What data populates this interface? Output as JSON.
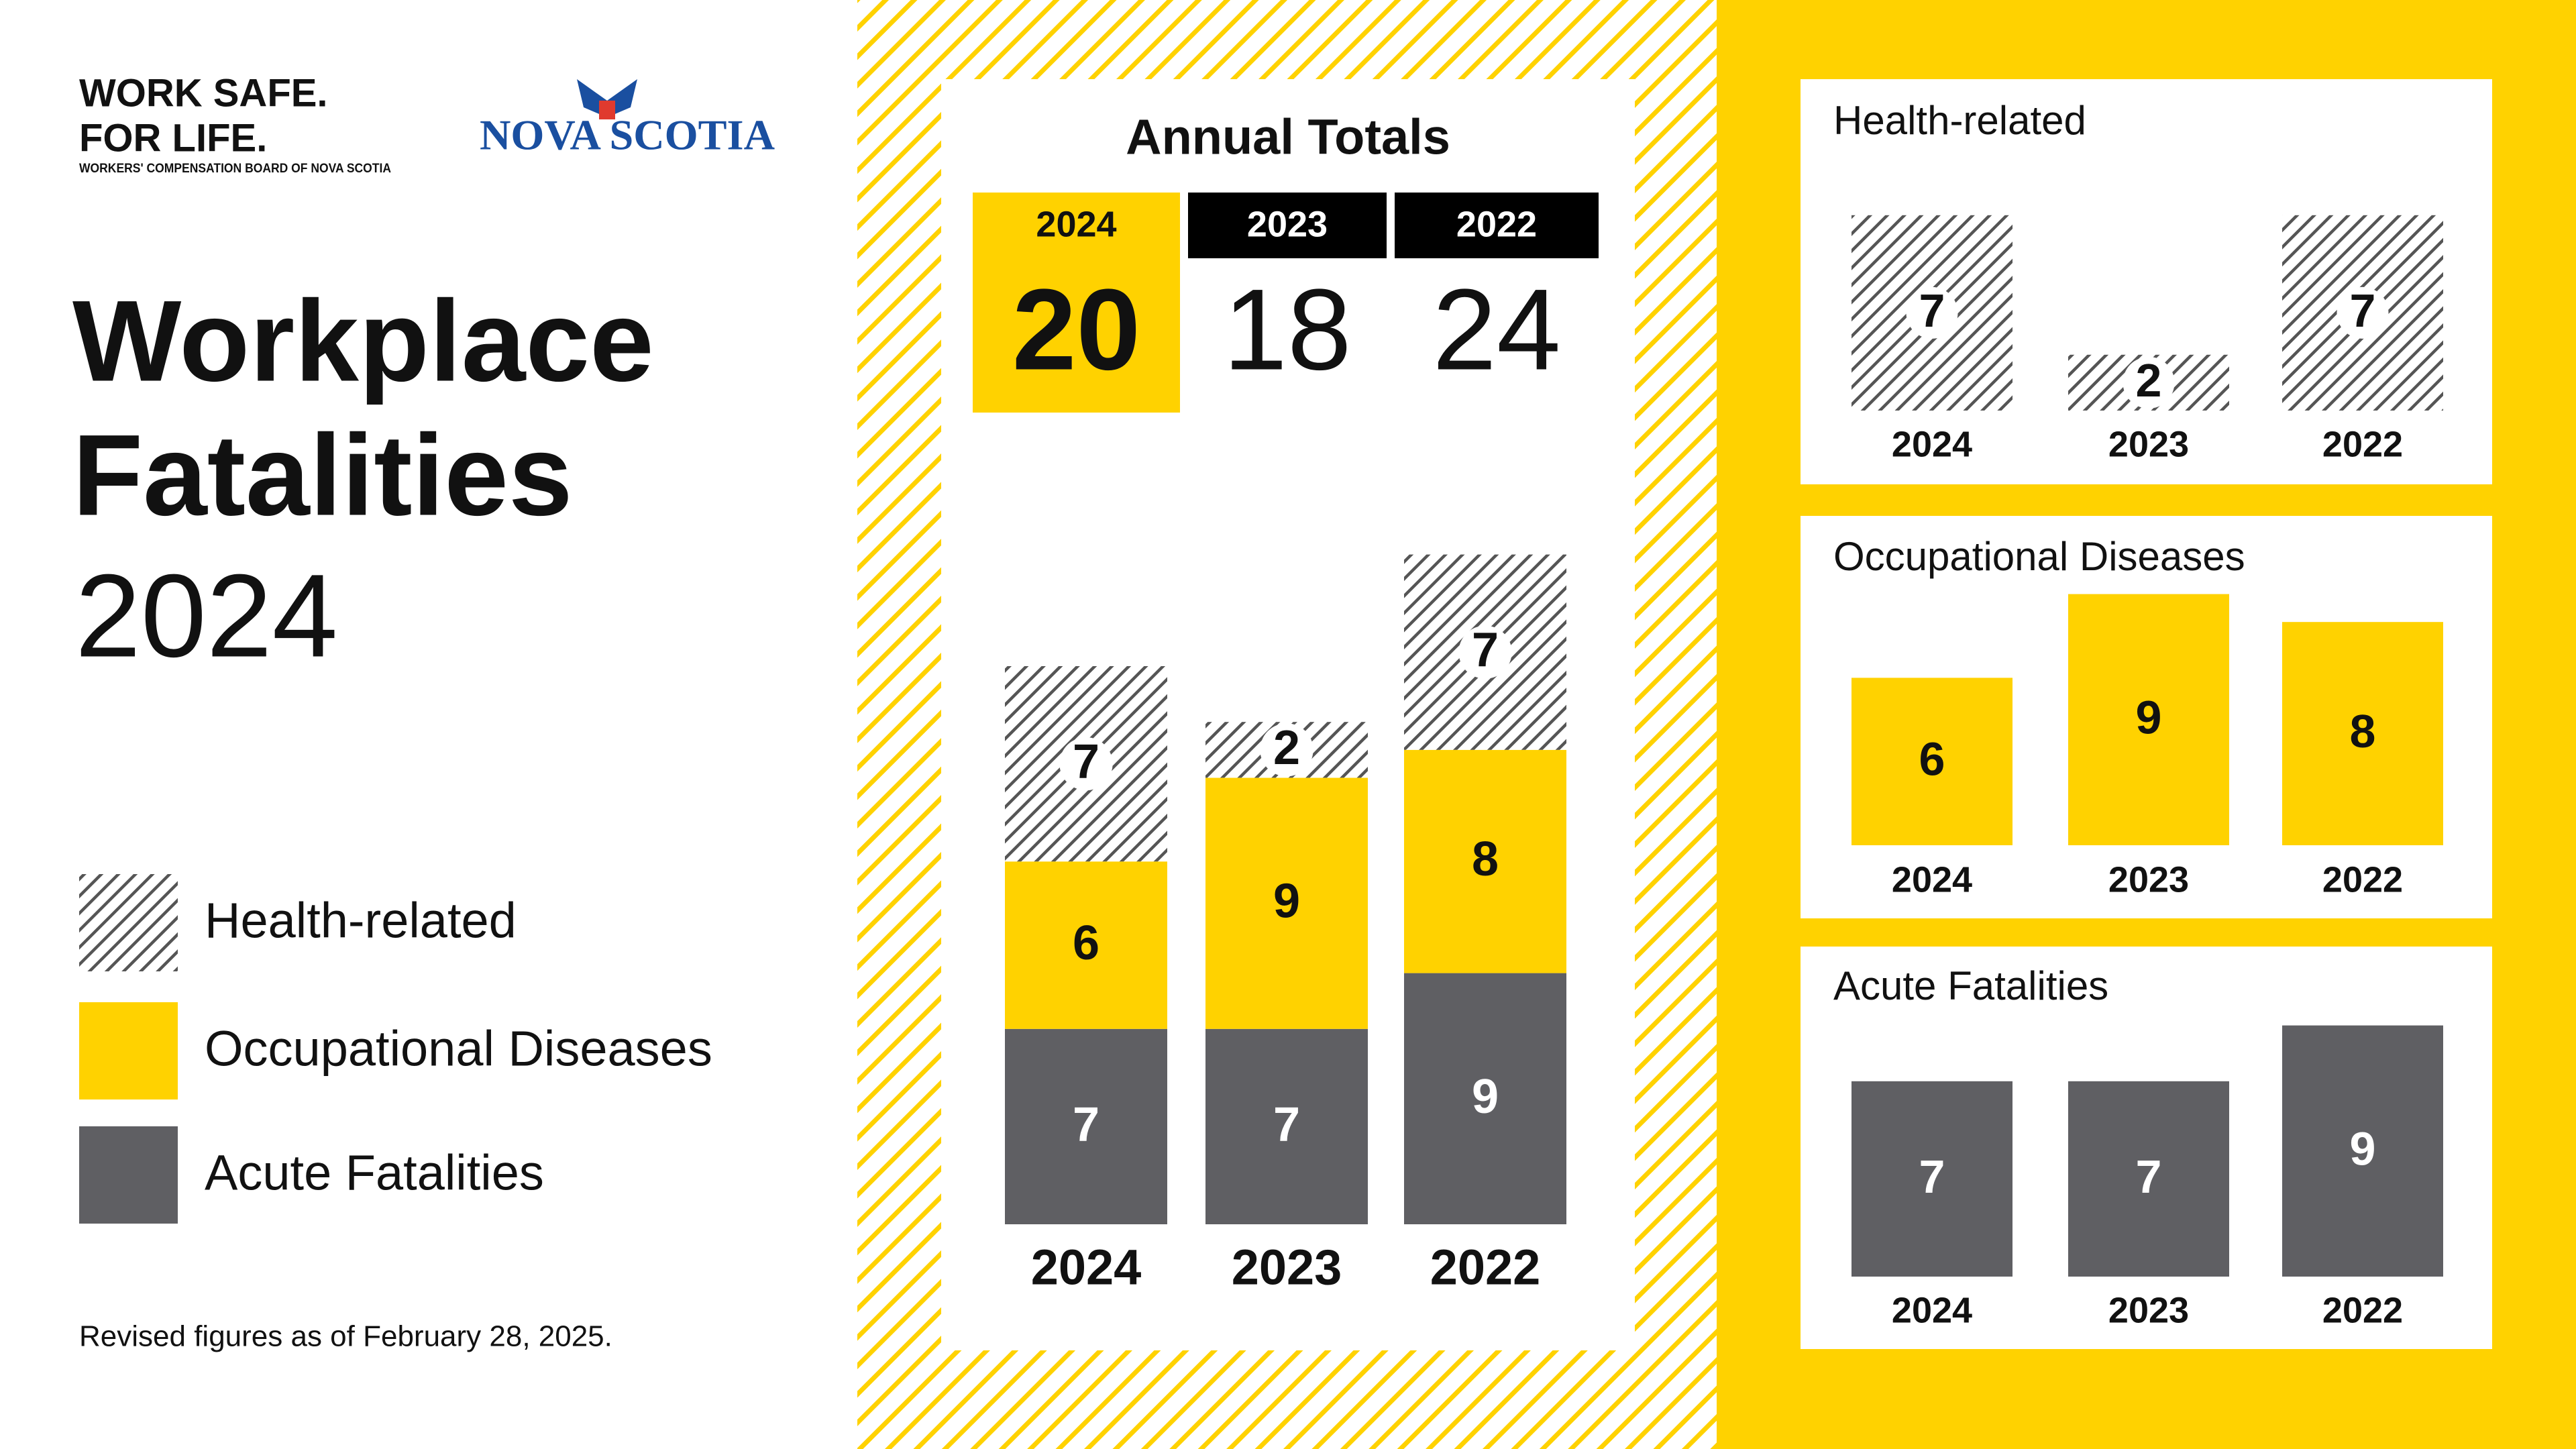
{
  "header": {
    "logo_line1": "WORK SAFE.",
    "logo_line2": "FOR LIFE.",
    "logo_sub": "WORKERS' COMPENSATION BOARD OF NOVA SCOTIA",
    "gov_logo": "NOVA SCOTIA",
    "title_line1": "Workplace",
    "title_line2": "Fatalities",
    "year": "2024"
  },
  "footnote": "Revised figures as of February 28, 2025.",
  "annual_totals": {
    "title": "Annual Totals",
    "years": [
      "2024",
      "2023",
      "2022"
    ],
    "values": [
      20,
      18,
      24
    ]
  },
  "chart_data": [
    {
      "type": "stacked-bar",
      "categories": [
        "2024",
        "2023",
        "2022"
      ],
      "series": [
        {
          "name": "Acute Fatalities",
          "color": "#5f5f63",
          "values": [
            7,
            7,
            9
          ]
        },
        {
          "name": "Occupational Diseases",
          "color": "#ffd200",
          "values": [
            6,
            9,
            8
          ]
        },
        {
          "name": "Health-related",
          "color": "#555555",
          "pattern": "hatch",
          "values": [
            7,
            2,
            7
          ]
        }
      ]
    },
    {
      "type": "bar",
      "title": "Health-related",
      "categories": [
        "2024",
        "2023",
        "2022"
      ],
      "values": [
        7,
        2,
        7
      ],
      "color": "#555555",
      "pattern": "hatch"
    },
    {
      "type": "bar",
      "title": "Occupational Diseases",
      "categories": [
        "2024",
        "2023",
        "2022"
      ],
      "values": [
        6,
        9,
        8
      ],
      "color": "#ffd200"
    },
    {
      "type": "bar",
      "title": "Acute Fatalities",
      "categories": [
        "2024",
        "2023",
        "2022"
      ],
      "values": [
        7,
        7,
        9
      ],
      "color": "#5f5f63"
    }
  ]
}
